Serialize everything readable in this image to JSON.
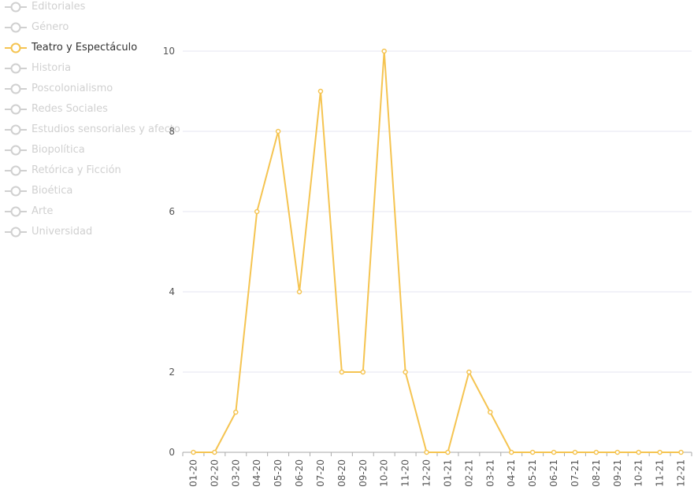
{
  "legend": {
    "items": [
      {
        "label": "Editoriales",
        "active": false
      },
      {
        "label": "Género",
        "active": false
      },
      {
        "label": "Teatro y Espectáculo",
        "active": true
      },
      {
        "label": "Historia",
        "active": false
      },
      {
        "label": "Poscolonialismo",
        "active": false
      },
      {
        "label": "Redes Sociales",
        "active": false
      },
      {
        "label": "Estudios sensoriales y afecto",
        "active": false
      },
      {
        "label": "Biopolítica",
        "active": false
      },
      {
        "label": "Retórica y Ficción",
        "active": false
      },
      {
        "label": "Bioética",
        "active": false
      },
      {
        "label": "Arte",
        "active": false
      },
      {
        "label": "Universidad",
        "active": false
      }
    ]
  },
  "colors": {
    "active_series": "#f5c451",
    "inactive_legend": "#d0d0d0",
    "grid": "#e6e6f0",
    "axis": "#aaaaaa"
  },
  "chart_data": {
    "type": "line",
    "title": "",
    "xlabel": "",
    "ylabel": "",
    "x": [
      "01-20",
      "02-20",
      "03-20",
      "04-20",
      "05-20",
      "06-20",
      "07-20",
      "08-20",
      "09-20",
      "10-20",
      "11-20",
      "12-20",
      "01-21",
      "02-21",
      "03-21",
      "04-21",
      "05-21",
      "06-21",
      "07-21",
      "08-21",
      "09-21",
      "10-21",
      "11-21",
      "12-21"
    ],
    "series": [
      {
        "name": "Teatro y Espectáculo",
        "values": [
          0,
          0,
          1,
          6,
          8,
          4,
          9,
          2,
          2,
          10,
          2,
          0,
          0,
          2,
          1,
          0,
          0,
          0,
          0,
          0,
          0,
          0,
          0,
          0
        ]
      }
    ],
    "ylim": [
      0,
      10
    ],
    "yticks": [
      0,
      2,
      4,
      6,
      8,
      10
    ],
    "grid": true,
    "legend_position": "top-left"
  }
}
